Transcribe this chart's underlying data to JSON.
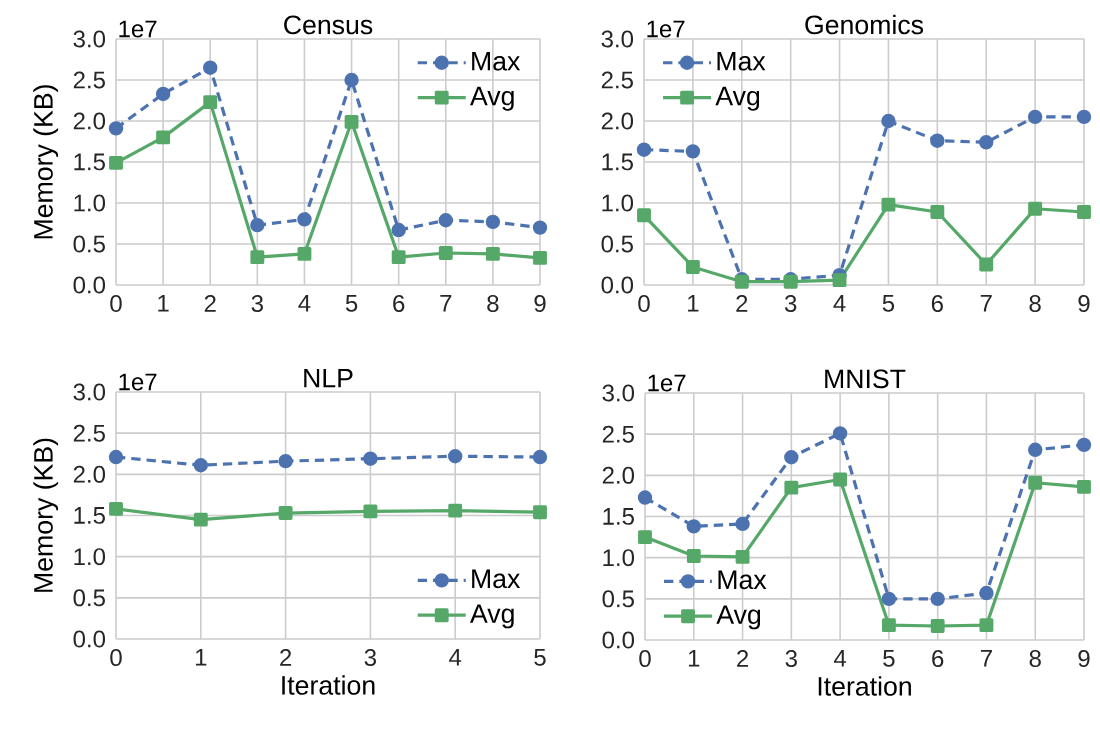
{
  "chart_data": [
    {
      "type": "line",
      "title": "Census",
      "ylabel": "Memory (KB)",
      "annotations": [
        "1e7"
      ],
      "x": [
        0,
        1,
        2,
        3,
        4,
        5,
        6,
        7,
        8,
        9
      ],
      "xlim": [
        0,
        9
      ],
      "xticks": [
        0,
        1,
        2,
        3,
        4,
        5,
        6,
        7,
        8,
        9
      ],
      "ylim": [
        0,
        3
      ],
      "yticks": [
        {
          "value": 0,
          "label": "0.0"
        },
        {
          "value": 0.5,
          "label": "0.5"
        },
        {
          "value": 1,
          "label": "1.0"
        },
        {
          "value": 1.5,
          "label": "1.5"
        },
        {
          "value": 2,
          "label": "2.0"
        },
        {
          "value": 2.5,
          "label": "2.5"
        },
        {
          "value": 3,
          "label": "3.0"
        }
      ],
      "grid": true,
      "legend": "top right",
      "series": [
        {
          "name": "Max",
          "color": "#4c72b0",
          "marker": "circle",
          "line_style": "dashed",
          "values": [
            1.91,
            2.33,
            2.65,
            0.73,
            0.8,
            2.5,
            0.67,
            0.79,
            0.77,
            0.7
          ]
        },
        {
          "name": "Avg",
          "color": "#55a868",
          "marker": "square",
          "line_style": "solid",
          "values": [
            1.49,
            1.8,
            2.23,
            0.34,
            0.38,
            1.99,
            0.34,
            0.39,
            0.38,
            0.33
          ]
        }
      ]
    },
    {
      "type": "line",
      "title": "Genomics",
      "annotations": [
        "1e7"
      ],
      "x": [
        0,
        1,
        2,
        3,
        4,
        5,
        6,
        7,
        8,
        9
      ],
      "xlim": [
        0,
        9
      ],
      "xticks": [
        0,
        1,
        2,
        3,
        4,
        5,
        6,
        7,
        8,
        9
      ],
      "ylim": [
        0,
        3
      ],
      "yticks": [
        {
          "value": 0,
          "label": "0.0"
        },
        {
          "value": 0.5,
          "label": "0.5"
        },
        {
          "value": 1,
          "label": "1.0"
        },
        {
          "value": 1.5,
          "label": "1.5"
        },
        {
          "value": 2,
          "label": "2.0"
        },
        {
          "value": 2.5,
          "label": "2.5"
        },
        {
          "value": 3,
          "label": "3.0"
        }
      ],
      "grid": true,
      "legend": "top left",
      "series": [
        {
          "name": "Max",
          "color": "#4c72b0",
          "marker": "circle",
          "line_style": "dashed",
          "values": [
            1.65,
            1.63,
            0.07,
            0.07,
            0.12,
            2.0,
            1.76,
            1.74,
            2.05,
            2.05
          ]
        },
        {
          "name": "Avg",
          "color": "#55a868",
          "marker": "square",
          "line_style": "solid",
          "values": [
            0.85,
            0.22,
            0.04,
            0.04,
            0.06,
            0.98,
            0.89,
            0.25,
            0.93,
            0.89
          ]
        }
      ]
    },
    {
      "type": "line",
      "title": "NLP",
      "xlabel": "Iteration",
      "ylabel": "Memory (KB)",
      "annotations": [
        "1e7"
      ],
      "x": [
        0,
        1,
        2,
        3,
        4,
        5
      ],
      "xlim": [
        0,
        5
      ],
      "xticks": [
        0,
        1,
        2,
        3,
        4,
        5
      ],
      "ylim": [
        0,
        3
      ],
      "yticks": [
        {
          "value": 0,
          "label": "0.0"
        },
        {
          "value": 0.5,
          "label": "0.5"
        },
        {
          "value": 1,
          "label": "1.0"
        },
        {
          "value": 1.5,
          "label": "1.5"
        },
        {
          "value": 2,
          "label": "2.0"
        },
        {
          "value": 2.5,
          "label": "2.5"
        },
        {
          "value": 3,
          "label": "3.0"
        }
      ],
      "grid": true,
      "legend": "bottom right",
      "series": [
        {
          "name": "Max",
          "color": "#4c72b0",
          "marker": "circle",
          "line_style": "dashed",
          "values": [
            2.21,
            2.11,
            2.16,
            2.19,
            2.22,
            2.21
          ]
        },
        {
          "name": "Avg",
          "color": "#55a868",
          "marker": "square",
          "line_style": "solid",
          "values": [
            1.58,
            1.45,
            1.53,
            1.55,
            1.56,
            1.54
          ]
        }
      ]
    },
    {
      "type": "line",
      "title": "MNIST",
      "xlabel": "Iteration",
      "annotations": [
        "1e7"
      ],
      "x": [
        0,
        1,
        2,
        3,
        4,
        5,
        6,
        7,
        8,
        9
      ],
      "xlim": [
        0,
        9
      ],
      "xticks": [
        0,
        1,
        2,
        3,
        4,
        5,
        6,
        7,
        8,
        9
      ],
      "ylim": [
        0,
        3
      ],
      "yticks": [
        {
          "value": 0,
          "label": "0.0"
        },
        {
          "value": 0.5,
          "label": "0.5"
        },
        {
          "value": 1,
          "label": "1.0"
        },
        {
          "value": 1.5,
          "label": "1.5"
        },
        {
          "value": 2,
          "label": "2.0"
        },
        {
          "value": 2.5,
          "label": "2.5"
        },
        {
          "value": 3,
          "label": "3.0"
        }
      ],
      "grid": true,
      "legend": "bottom left",
      "series": [
        {
          "name": "Max",
          "color": "#4c72b0",
          "marker": "circle",
          "line_style": "dashed",
          "values": [
            1.73,
            1.38,
            1.41,
            2.22,
            2.51,
            0.5,
            0.5,
            0.57,
            2.31,
            2.37
          ]
        },
        {
          "name": "Avg",
          "color": "#55a868",
          "marker": "square",
          "line_style": "solid",
          "values": [
            1.25,
            1.02,
            1.01,
            1.85,
            1.95,
            0.18,
            0.17,
            0.18,
            1.91,
            1.86
          ]
        }
      ]
    }
  ]
}
